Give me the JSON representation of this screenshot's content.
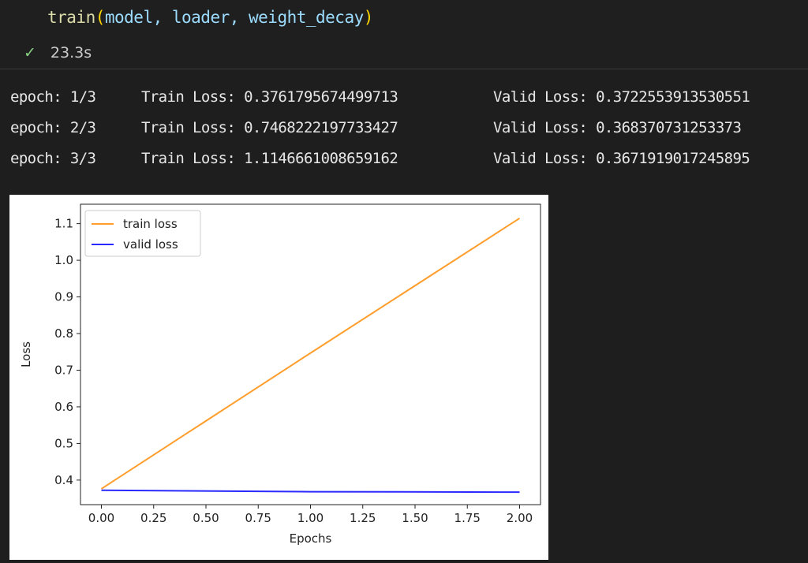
{
  "cell": {
    "code": {
      "fn": "train",
      "args": "model, loader, weight_decay"
    },
    "status": {
      "icon": "check-icon",
      "duration": "23.3s"
    }
  },
  "output": {
    "lines": [
      {
        "epoch": "epoch: 1/3",
        "train": "Train Loss: 0.3761795674499713",
        "valid": "Valid Loss: 0.3722553913530551"
      },
      {
        "epoch": "epoch: 2/3",
        "train": "Train Loss: 0.7468222197733427",
        "valid": "Valid Loss: 0.368370731253373"
      },
      {
        "epoch": "epoch: 3/3",
        "train": "Train Loss: 1.1146661008659162",
        "valid": "Valid Loss: 0.3671919017245895"
      }
    ]
  },
  "chart_data": {
    "type": "line",
    "xlabel": "Epochs",
    "ylabel": "Loss",
    "xlim": [
      -0.1,
      2.1
    ],
    "ylim": [
      0.333,
      1.153
    ],
    "xticks": [
      "0.00",
      "0.25",
      "0.50",
      "0.75",
      "1.00",
      "1.25",
      "1.50",
      "1.75",
      "2.00"
    ],
    "yticks": [
      "0.4",
      "0.5",
      "0.6",
      "0.7",
      "0.8",
      "0.9",
      "1.0",
      "1.1"
    ],
    "legend": "top-left",
    "grid": false,
    "x": [
      0,
      1,
      2
    ],
    "series": [
      {
        "name": "train loss",
        "color": "#ff9e2c",
        "values": [
          0.3761795674499713,
          0.7468222197733427,
          1.1146661008659162
        ]
      },
      {
        "name": "valid loss",
        "color": "#2a2aff",
        "values": [
          0.3722553913530551,
          0.368370731253373,
          0.3671919017245895
        ]
      }
    ]
  }
}
